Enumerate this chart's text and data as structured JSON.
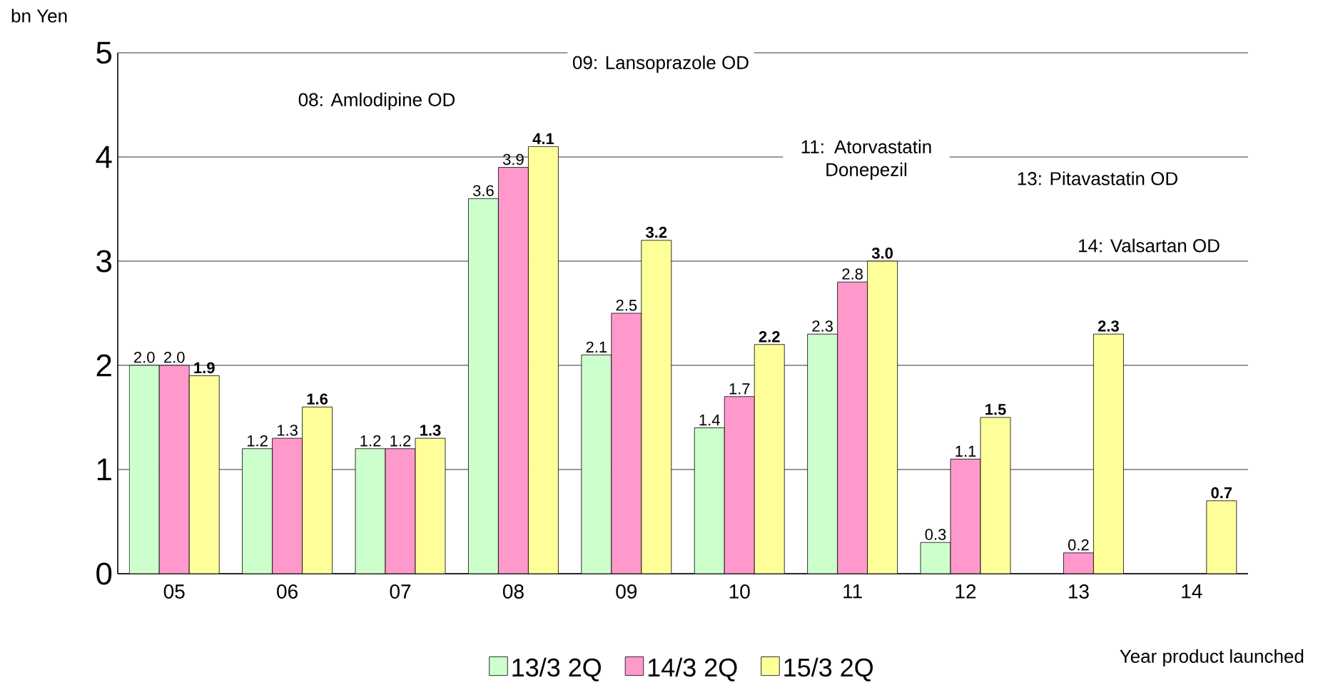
{
  "chart_data": {
    "type": "bar",
    "ylabel": "bn Yen",
    "xlabel": "Year product launched",
    "categories": [
      "05",
      "06",
      "07",
      "08",
      "09",
      "10",
      "11",
      "12",
      "13",
      "14"
    ],
    "series": [
      {
        "name": "13/3 2Q",
        "color": "#ccffcc",
        "values": [
          2.0,
          1.2,
          1.2,
          3.6,
          2.1,
          1.4,
          2.3,
          0.3,
          null,
          null
        ],
        "value_labels": [
          "2.0",
          "1.2",
          "1.2",
          "3.6",
          "2.1",
          "1.4",
          "2.3",
          "0.3",
          null,
          null
        ]
      },
      {
        "name": "14/3 2Q",
        "color": "#ff99cc",
        "values": [
          2.0,
          1.3,
          1.2,
          3.9,
          2.5,
          1.7,
          2.8,
          1.1,
          0.2,
          null
        ],
        "value_labels": [
          "2.0",
          "1.3",
          "1.2",
          "3.9",
          "2.5",
          "1.7",
          "2.8",
          "1.1",
          "0.2",
          null
        ]
      },
      {
        "name": "15/3 2Q",
        "color": "#ffff99",
        "values": [
          1.9,
          1.6,
          1.3,
          4.1,
          3.2,
          2.2,
          3.0,
          1.5,
          2.3,
          0.7
        ],
        "value_labels": [
          "1.9",
          "1.6",
          "1.3",
          "4.1",
          "3.2",
          "2.2",
          "3.0",
          "1.5",
          "2.3",
          "0.7"
        ]
      }
    ],
    "ylim": [
      0,
      5
    ],
    "yticks": [
      0,
      1,
      2,
      3,
      4,
      5
    ],
    "grid": "y",
    "legend": "bottom",
    "annotations": [
      "09: Lansoprazole OD",
      "08: Amlodipine OD",
      "11: Atorvastatin Donepezil",
      "13: Pitavastatin OD",
      "14: Valsartan OD"
    ]
  }
}
